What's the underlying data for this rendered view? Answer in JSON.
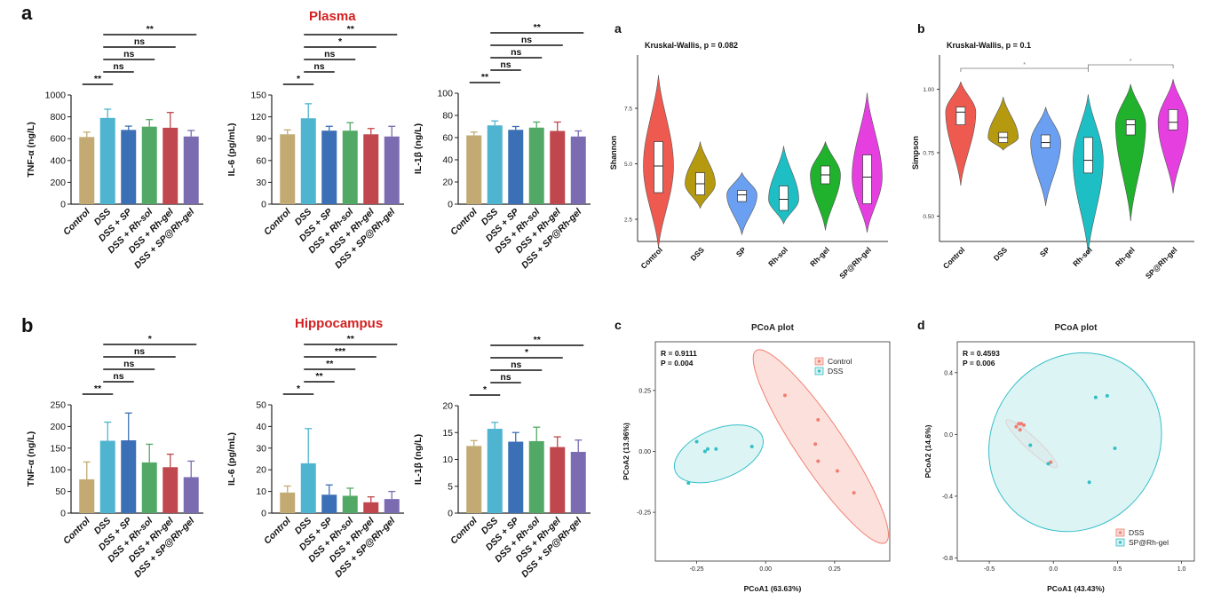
{
  "left": {
    "panel_a_letter": "a",
    "panel_b_letter": "b",
    "plasma_title": "Plasma",
    "hippocampus_title": "Hippocampus",
    "title_color": "#d42020",
    "bar_colors": [
      "#c2aa72",
      "#4fb4cf",
      "#3b6fb6",
      "#52a966",
      "#bf474d",
      "#7b6bb0"
    ]
  },
  "right": {
    "a_letter": "a",
    "b_letter": "b",
    "c_letter": "c",
    "d_letter": "d",
    "violin_colors": [
      "#ee5a4f",
      "#b59a10",
      "#6a9ff1",
      "#1dbfc4",
      "#20b12d",
      "#e53fe0"
    ]
  },
  "chart_data": [
    {
      "type": "bar",
      "name": "plasma-tnf",
      "categories": [
        "Control",
        "DSS",
        "DSS + SP",
        "DSS + Rh-sol",
        "DSS + Rh-gel",
        "DSS + SP@Rh-gel"
      ],
      "values": [
        615,
        790,
        680,
        710,
        700,
        620
      ],
      "errors": [
        45,
        80,
        35,
        65,
        140,
        55
      ],
      "ylabel": "TNF-α (ng/L)",
      "ylim": [
        0,
        1000
      ],
      "yticks": [
        0,
        200,
        400,
        600,
        800,
        1000
      ],
      "sig": [
        {
          "from": 0,
          "to": 1,
          "label": "**"
        },
        {
          "from": 1,
          "to": 2,
          "label": "ns"
        },
        {
          "from": 1,
          "to": 3,
          "label": "ns"
        },
        {
          "from": 1,
          "to": 4,
          "label": "ns"
        },
        {
          "from": 1,
          "to": 5,
          "label": "**"
        }
      ]
    },
    {
      "type": "bar",
      "name": "plasma-il6",
      "categories": [
        "Control",
        "DSS",
        "DSS + SP",
        "DSS + Rh-sol",
        "DSS + Rh-gel",
        "DSS + SP@Rh-gel"
      ],
      "values": [
        96,
        118,
        101,
        101,
        96,
        93
      ],
      "errors": [
        6,
        20,
        6,
        11,
        8,
        14
      ],
      "ylabel": "IL-6 (pg/mL)",
      "ylim": [
        0,
        150
      ],
      "yticks": [
        0,
        30,
        60,
        90,
        120,
        150
      ],
      "sig": [
        {
          "from": 0,
          "to": 1,
          "label": "*"
        },
        {
          "from": 1,
          "to": 2,
          "label": "ns"
        },
        {
          "from": 1,
          "to": 3,
          "label": "ns"
        },
        {
          "from": 1,
          "to": 4,
          "label": "*"
        },
        {
          "from": 1,
          "to": 5,
          "label": "**"
        }
      ]
    },
    {
      "type": "bar",
      "name": "plasma-il1b",
      "categories": [
        "Control",
        "DSS",
        "DSS + SP",
        "DSS + Rh-sol",
        "DSS + Rh-gel",
        "DSS + SP@Rh-gel"
      ],
      "values": [
        62,
        71,
        67,
        69,
        66,
        61
      ],
      "errors": [
        3,
        4,
        3,
        5,
        8,
        5
      ],
      "ylabel": "IL-1β (ng/L)",
      "ylim": [
        0,
        100
      ],
      "yticks": [
        0,
        20,
        40,
        60,
        80,
        100
      ],
      "sig": [
        {
          "from": 0,
          "to": 1,
          "label": "**"
        },
        {
          "from": 1,
          "to": 2,
          "label": "ns"
        },
        {
          "from": 1,
          "to": 3,
          "label": "ns"
        },
        {
          "from": 1,
          "to": 4,
          "label": "ns"
        },
        {
          "from": 1,
          "to": 5,
          "label": "**"
        }
      ]
    },
    {
      "type": "bar",
      "name": "hippo-tnf",
      "categories": [
        "Control",
        "DSS",
        "DSS + SP",
        "DSS + Rh-sol",
        "DSS + Rh-gel",
        "DSS + SP@Rh-gel"
      ],
      "values": [
        78,
        167,
        168,
        117,
        106,
        83
      ],
      "errors": [
        40,
        43,
        63,
        42,
        30,
        37
      ],
      "ylabel": "TNF-α (ng/L)",
      "ylim": [
        0,
        250
      ],
      "yticks": [
        0,
        50,
        100,
        150,
        200,
        250
      ],
      "sig": [
        {
          "from": 0,
          "to": 1,
          "label": "**"
        },
        {
          "from": 1,
          "to": 2,
          "label": "ns"
        },
        {
          "from": 1,
          "to": 3,
          "label": "ns"
        },
        {
          "from": 1,
          "to": 4,
          "label": "ns"
        },
        {
          "from": 1,
          "to": 5,
          "label": "*"
        }
      ]
    },
    {
      "type": "bar",
      "name": "hippo-il6",
      "categories": [
        "Control",
        "DSS",
        "DSS + SP",
        "DSS + Rh-sol",
        "DSS + Rh-gel",
        "DSS + SP@Rh-gel"
      ],
      "values": [
        9.5,
        23,
        8.5,
        8,
        5,
        6.5
      ],
      "errors": [
        3,
        16,
        4.5,
        3.5,
        2.5,
        3.5
      ],
      "ylabel": "IL-6 (pg/mL)",
      "ylim": [
        0,
        50
      ],
      "yticks": [
        0,
        10,
        20,
        30,
        40,
        50
      ],
      "sig": [
        {
          "from": 0,
          "to": 1,
          "label": "*"
        },
        {
          "from": 1,
          "to": 2,
          "label": "**"
        },
        {
          "from": 1,
          "to": 3,
          "label": "**"
        },
        {
          "from": 1,
          "to": 4,
          "label": "***"
        },
        {
          "from": 1,
          "to": 5,
          "label": "**"
        }
      ]
    },
    {
      "type": "bar",
      "name": "hippo-il1b",
      "categories": [
        "Control",
        "DSS",
        "DSS + SP",
        "DSS + Rh-sol",
        "DSS + Rh-gel",
        "DSS + SP@Rh-gel"
      ],
      "values": [
        12.5,
        15.7,
        13.3,
        13.4,
        12.3,
        11.4
      ],
      "errors": [
        1,
        1.2,
        1.7,
        2.6,
        1.9,
        2.2
      ],
      "ylabel": "IL-1β (ng/L)",
      "ylim": [
        0,
        20
      ],
      "yticks": [
        0,
        5,
        10,
        15,
        20
      ],
      "sig": [
        {
          "from": 0,
          "to": 1,
          "label": "*"
        },
        {
          "from": 1,
          "to": 2,
          "label": "ns"
        },
        {
          "from": 1,
          "to": 3,
          "label": "ns"
        },
        {
          "from": 1,
          "to": 4,
          "label": "*"
        },
        {
          "from": 1,
          "to": 5,
          "label": "**"
        }
      ]
    },
    {
      "type": "violin",
      "name": "shannon",
      "annotation": "Kruskal-Wallis, p = 0.082",
      "categories": [
        "Control",
        "DSS",
        "SP",
        "Rh-sol",
        "Rh-gel",
        "SP@Rh-gel"
      ],
      "ylabel": "Shannon",
      "ylim": [
        1.5,
        9.5
      ],
      "yticks": [
        "2.5",
        "5.0",
        "7.5"
      ],
      "ytick_values": [
        2.5,
        5.0,
        7.5
      ],
      "violin_range": [
        [
          1.2,
          9.0
        ],
        [
          3.0,
          6.0
        ],
        [
          1.8,
          4.6
        ],
        [
          2.3,
          5.8
        ],
        [
          2.0,
          6.0
        ],
        [
          1.9,
          8.2
        ]
      ],
      "box": [
        [
          3.7,
          4.9,
          6.0
        ],
        [
          3.6,
          4.1,
          4.6
        ],
        [
          3.3,
          3.6,
          3.8
        ],
        [
          2.9,
          3.4,
          4.0
        ],
        [
          4.1,
          4.5,
          4.9
        ],
        [
          3.2,
          4.4,
          5.4
        ]
      ]
    },
    {
      "type": "violin",
      "name": "simpson",
      "annotation": "Kruskal-Wallis, p = 0.1",
      "categories": [
        "Control",
        "DSS",
        "SP",
        "Rh-sol",
        "Rh-gel",
        "SP@Rh-gel"
      ],
      "ylabel": "Simpson",
      "ylim": [
        0.4,
        1.1
      ],
      "yticks": [
        "0.50",
        "0.75",
        "1.00"
      ],
      "ytick_values": [
        0.5,
        0.75,
        1.0
      ],
      "violin_range": [
        [
          0.62,
          1.03
        ],
        [
          0.76,
          0.97
        ],
        [
          0.54,
          0.93
        ],
        [
          0.35,
          0.98
        ],
        [
          0.48,
          1.02
        ],
        [
          0.59,
          1.04
        ]
      ],
      "box": [
        [
          0.86,
          0.91,
          0.93
        ],
        [
          0.79,
          0.81,
          0.83
        ],
        [
          0.77,
          0.79,
          0.82
        ],
        [
          0.67,
          0.72,
          0.81
        ],
        [
          0.82,
          0.86,
          0.88
        ],
        [
          0.84,
          0.87,
          0.92
        ]
      ],
      "brackets": [
        {
          "from": 0,
          "to": 3,
          "label": "*"
        },
        {
          "from": 3,
          "to": 5,
          "label": "*"
        }
      ]
    },
    {
      "type": "scatter",
      "name": "pcoa-control-dss",
      "title": "PCoA plot",
      "stat_r": "R = 0.9111",
      "stat_p": "P = 0.004",
      "xlabel": "PCoA1 (63.63%)",
      "ylabel": "PCoA2 (13.96%)",
      "xlim": [
        -0.4,
        0.45
      ],
      "ylim": [
        -0.45,
        0.45
      ],
      "xticks": [
        "-0.25",
        "0.00",
        "0.25"
      ],
      "xtick_values": [
        -0.25,
        0,
        0.25
      ],
      "yticks": [
        "-0.25",
        "0.00",
        "0.25"
      ],
      "ytick_values": [
        -0.25,
        0,
        0.25
      ],
      "legend": "top-right",
      "series": [
        {
          "name": "Control",
          "color": "#f07f72",
          "fill": "#fbd6d0",
          "points": [
            [
              0.07,
              0.23
            ],
            [
              0.19,
              0.13
            ],
            [
              0.18,
              0.03
            ],
            [
              0.19,
              -0.04
            ],
            [
              0.26,
              -0.08
            ],
            [
              0.32,
              -0.17
            ]
          ],
          "ellipse": {
            "cx": 0.2,
            "cy": 0.02,
            "rx": 0.42,
            "ry": 0.085,
            "angle": -56
          }
        },
        {
          "name": "DSS",
          "color": "#34bfc7",
          "fill": "#d2f0f1",
          "points": [
            [
              -0.25,
              0.04
            ],
            [
              -0.22,
              0.0
            ],
            [
              -0.21,
              0.01
            ],
            [
              -0.18,
              0.01
            ],
            [
              -0.05,
              0.02
            ],
            [
              -0.28,
              -0.13
            ]
          ],
          "ellipse": {
            "cx": -0.17,
            "cy": -0.01,
            "rx": 0.17,
            "ry": 0.09,
            "angle": 22
          }
        }
      ]
    },
    {
      "type": "scatter",
      "name": "pcoa-dss-sprh",
      "title": "PCoA plot",
      "stat_r": "R = 0.4593",
      "stat_p": "P = 0.006",
      "xlabel": "PCoA1 (43.43%)",
      "ylabel": "PCoA2 (14.6%)",
      "xlim": [
        -0.75,
        1.1
      ],
      "ylim": [
        -0.82,
        0.6
      ],
      "xticks": [
        "-0.5",
        "0.0",
        "0.5",
        "1.0"
      ],
      "xtick_values": [
        -0.5,
        0,
        0.5,
        1.0
      ],
      "yticks": [
        "-0.8",
        "-0.4",
        "0.0",
        "0.4"
      ],
      "ytick_values": [
        -0.8,
        -0.4,
        0,
        0.4
      ],
      "legend": "bottom-right",
      "series": [
        {
          "name": "DSS",
          "color": "#f07f72",
          "fill": "#f5d8d4",
          "points": [
            [
              -0.27,
              0.07
            ],
            [
              -0.25,
              0.07
            ],
            [
              -0.29,
              0.05
            ],
            [
              -0.26,
              0.03
            ],
            [
              -0.23,
              0.06
            ],
            [
              -0.02,
              -0.18
            ]
          ],
          "ellipse": {
            "cx": -0.17,
            "cy": -0.06,
            "rx": 0.27,
            "ry": 0.05,
            "angle": -43
          }
        },
        {
          "name": "SP@Rh-gel",
          "color": "#34bfc7",
          "fill": "#d2f0f1",
          "points": [
            [
              -0.04,
              -0.19
            ],
            [
              -0.18,
              -0.07
            ],
            [
              0.33,
              0.24
            ],
            [
              0.42,
              0.25
            ],
            [
              0.48,
              -0.09
            ],
            [
              0.28,
              -0.31
            ]
          ],
          "ellipse": {
            "cx": 0.17,
            "cy": -0.05,
            "rx": 0.65,
            "ry": 0.72,
            "angle": -35
          }
        }
      ]
    }
  ]
}
